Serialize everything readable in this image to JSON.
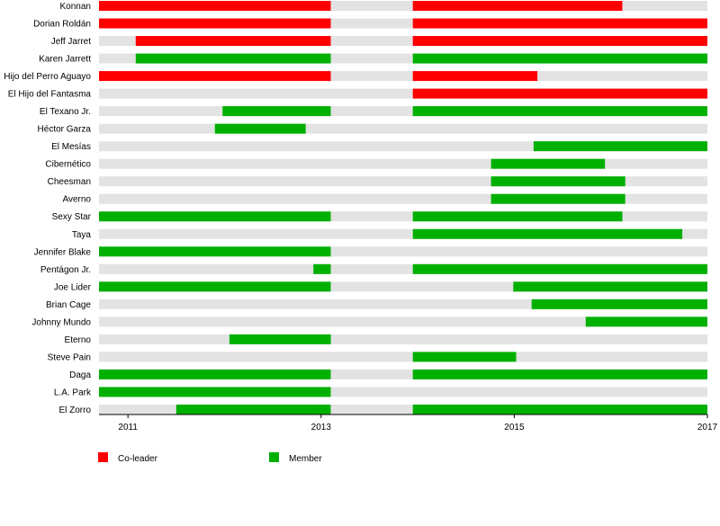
{
  "chart_data": {
    "type": "timeline",
    "title": "",
    "xlabel": "",
    "ylabel": "",
    "x_range": [
      2010.7,
      2017.0
    ],
    "x_ticks": [
      2011,
      2013,
      2015,
      2017
    ],
    "legend_placement": "bottom-left",
    "categories": [
      "Konnan",
      "Dorian Roldán",
      "Jeff Jarret",
      "Karen Jarrett",
      "Hijo del Perro Aguayo",
      "El Hijo del Fantasma",
      "El Texano Jr.",
      "Héctor Garza",
      "El Mesías",
      "Cibernético",
      "Cheesman",
      "Averno",
      "Sexy Star",
      "Taya",
      "Jennifer Blake",
      "Pentágon Jr.",
      "Joe Lider",
      "Brian Cage",
      "Johnny Mundo",
      "Eterno",
      "Steve Pain",
      "Daga",
      "L.A. Park",
      "El Zorro"
    ],
    "series": [
      {
        "name": "Co-leader",
        "color": "#ff0000"
      },
      {
        "name": "Member",
        "color": "#00b000"
      }
    ],
    "background_band_color": "#e3e3e3",
    "segments": [
      {
        "row": 0,
        "series": 0,
        "start": 2010.7,
        "end": 2013.1
      },
      {
        "row": 0,
        "series": 0,
        "start": 2013.95,
        "end": 2016.12
      },
      {
        "row": 1,
        "series": 0,
        "start": 2010.7,
        "end": 2013.1
      },
      {
        "row": 1,
        "series": 0,
        "start": 2013.95,
        "end": 2017.0
      },
      {
        "row": 2,
        "series": 0,
        "start": 2011.08,
        "end": 2013.1
      },
      {
        "row": 2,
        "series": 0,
        "start": 2013.95,
        "end": 2017.0
      },
      {
        "row": 3,
        "series": 1,
        "start": 2011.08,
        "end": 2013.1
      },
      {
        "row": 3,
        "series": 1,
        "start": 2013.95,
        "end": 2017.0
      },
      {
        "row": 4,
        "series": 0,
        "start": 2010.7,
        "end": 2013.1
      },
      {
        "row": 4,
        "series": 0,
        "start": 2013.95,
        "end": 2015.24
      },
      {
        "row": 5,
        "series": 0,
        "start": 2013.95,
        "end": 2017.0
      },
      {
        "row": 6,
        "series": 1,
        "start": 2011.98,
        "end": 2013.1
      },
      {
        "row": 6,
        "series": 1,
        "start": 2013.95,
        "end": 2017.0
      },
      {
        "row": 7,
        "series": 1,
        "start": 2011.9,
        "end": 2012.84
      },
      {
        "row": 8,
        "series": 1,
        "start": 2015.2,
        "end": 2017.0
      },
      {
        "row": 9,
        "series": 1,
        "start": 2014.76,
        "end": 2015.94
      },
      {
        "row": 10,
        "series": 1,
        "start": 2014.76,
        "end": 2016.15
      },
      {
        "row": 11,
        "series": 1,
        "start": 2014.76,
        "end": 2016.15
      },
      {
        "row": 12,
        "series": 1,
        "start": 2010.7,
        "end": 2013.1
      },
      {
        "row": 12,
        "series": 1,
        "start": 2013.95,
        "end": 2016.12
      },
      {
        "row": 13,
        "series": 1,
        "start": 2013.95,
        "end": 2016.74
      },
      {
        "row": 14,
        "series": 1,
        "start": 2010.7,
        "end": 2013.1
      },
      {
        "row": 15,
        "series": 1,
        "start": 2012.92,
        "end": 2013.1
      },
      {
        "row": 15,
        "series": 1,
        "start": 2013.95,
        "end": 2017.0
      },
      {
        "row": 16,
        "series": 1,
        "start": 2010.7,
        "end": 2013.1
      },
      {
        "row": 16,
        "series": 1,
        "start": 2014.99,
        "end": 2017.0
      },
      {
        "row": 17,
        "series": 1,
        "start": 2015.18,
        "end": 2017.0
      },
      {
        "row": 18,
        "series": 1,
        "start": 2015.74,
        "end": 2017.0
      },
      {
        "row": 19,
        "series": 1,
        "start": 2012.05,
        "end": 2013.1
      },
      {
        "row": 20,
        "series": 1,
        "start": 2013.95,
        "end": 2015.02
      },
      {
        "row": 21,
        "series": 1,
        "start": 2010.7,
        "end": 2013.1
      },
      {
        "row": 21,
        "series": 1,
        "start": 2013.95,
        "end": 2017.0
      },
      {
        "row": 22,
        "series": 1,
        "start": 2010.7,
        "end": 2013.1
      },
      {
        "row": 23,
        "series": 1,
        "start": 2011.5,
        "end": 2013.1
      },
      {
        "row": 23,
        "series": 1,
        "start": 2013.95,
        "end": 2017.0
      }
    ]
  }
}
